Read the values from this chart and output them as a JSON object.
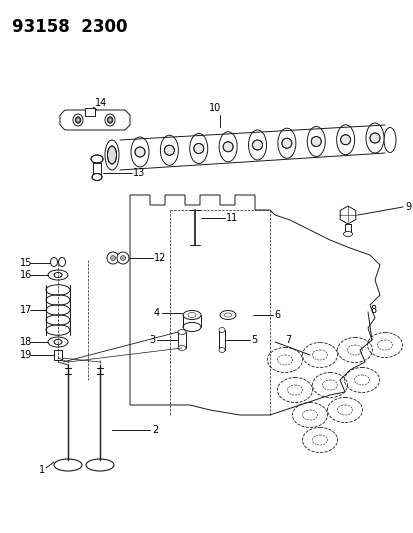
{
  "title": "93158  2300",
  "bg_color": "#ffffff",
  "line_color": "#1a1a1a",
  "title_fontsize": 11,
  "label_fontsize": 7,
  "fig_width": 4.14,
  "fig_height": 5.33,
  "dpi": 100
}
